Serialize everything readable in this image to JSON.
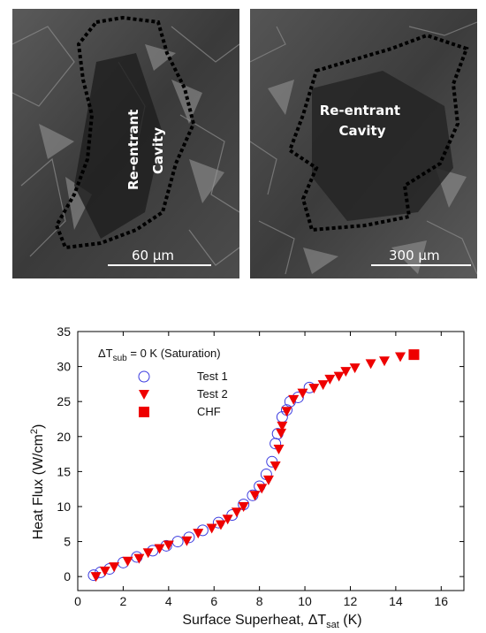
{
  "micrographs": [
    {
      "cavity_label_line1": "Re-entrant",
      "cavity_label_line2": "Cavity",
      "scale_label": "60 µm"
    },
    {
      "cavity_label_line1": "Re-entrant",
      "cavity_label_line2": "Cavity",
      "scale_label": "300 µm"
    }
  ],
  "chart_data": {
    "type": "scatter",
    "title": "",
    "xlabel": {
      "main": "Surface Superheat, ΔT",
      "sub": "sat",
      "unit": " (K)"
    },
    "ylabel": {
      "main": "Heat Flux (W/cm",
      "sup": "2",
      "end": ")"
    },
    "xlim": [
      0,
      17
    ],
    "ylim": [
      -2,
      35
    ],
    "xticks": [
      0,
      2,
      4,
      6,
      8,
      10,
      12,
      14,
      16
    ],
    "yticks": [
      0,
      5,
      10,
      15,
      20,
      25,
      30,
      35
    ],
    "annotation": {
      "main": "ΔT",
      "sub": "sub",
      "rest": " = 0 K (Saturation)"
    },
    "legend_position": "top-left",
    "series": [
      {
        "name": "Test 1",
        "marker": "open-circle",
        "color": "#3b3bdf",
        "points": [
          [
            0.7,
            0.2
          ],
          [
            1.0,
            0.6
          ],
          [
            1.4,
            1.1
          ],
          [
            2.0,
            2.0
          ],
          [
            2.6,
            2.8
          ],
          [
            3.3,
            3.7
          ],
          [
            3.9,
            4.4
          ],
          [
            4.4,
            5.0
          ],
          [
            4.9,
            5.6
          ],
          [
            5.5,
            6.6
          ],
          [
            6.2,
            7.7
          ],
          [
            6.8,
            8.8
          ],
          [
            7.3,
            10.3
          ],
          [
            7.7,
            11.6
          ],
          [
            8.0,
            12.9
          ],
          [
            8.3,
            14.6
          ],
          [
            8.55,
            16.4
          ],
          [
            8.7,
            19.0
          ],
          [
            8.8,
            20.4
          ],
          [
            9.0,
            22.8
          ],
          [
            9.2,
            23.8
          ],
          [
            9.35,
            25.0
          ],
          [
            9.7,
            25.6
          ],
          [
            10.2,
            27.0
          ]
        ]
      },
      {
        "name": "Test 2",
        "marker": "filled-triangle-down",
        "color": "#ee0000",
        "points": [
          [
            0.8,
            0.0
          ],
          [
            1.2,
            0.8
          ],
          [
            1.6,
            1.4
          ],
          [
            2.2,
            2.2
          ],
          [
            2.7,
            2.6
          ],
          [
            3.1,
            3.4
          ],
          [
            3.6,
            4.0
          ],
          [
            4.0,
            4.5
          ],
          [
            4.8,
            5.1
          ],
          [
            5.3,
            6.2
          ],
          [
            5.9,
            6.9
          ],
          [
            6.3,
            7.4
          ],
          [
            6.6,
            8.2
          ],
          [
            7.0,
            9.2
          ],
          [
            7.3,
            10.0
          ],
          [
            7.8,
            11.6
          ],
          [
            8.1,
            12.6
          ],
          [
            8.4,
            13.8
          ],
          [
            8.7,
            15.8
          ],
          [
            8.85,
            18.2
          ],
          [
            8.95,
            20.5
          ],
          [
            9.0,
            21.5
          ],
          [
            9.2,
            23.6
          ],
          [
            9.5,
            25.3
          ],
          [
            9.9,
            26.2
          ],
          [
            10.4,
            26.9
          ],
          [
            10.8,
            27.4
          ],
          [
            11.1,
            28.2
          ],
          [
            11.5,
            28.6
          ],
          [
            11.8,
            29.3
          ],
          [
            12.2,
            29.8
          ],
          [
            12.9,
            30.4
          ],
          [
            13.5,
            30.8
          ],
          [
            14.2,
            31.4
          ]
        ]
      },
      {
        "name": "CHF",
        "marker": "filled-square",
        "color": "#ee0000",
        "points": [
          [
            14.8,
            31.7
          ]
        ]
      }
    ]
  }
}
